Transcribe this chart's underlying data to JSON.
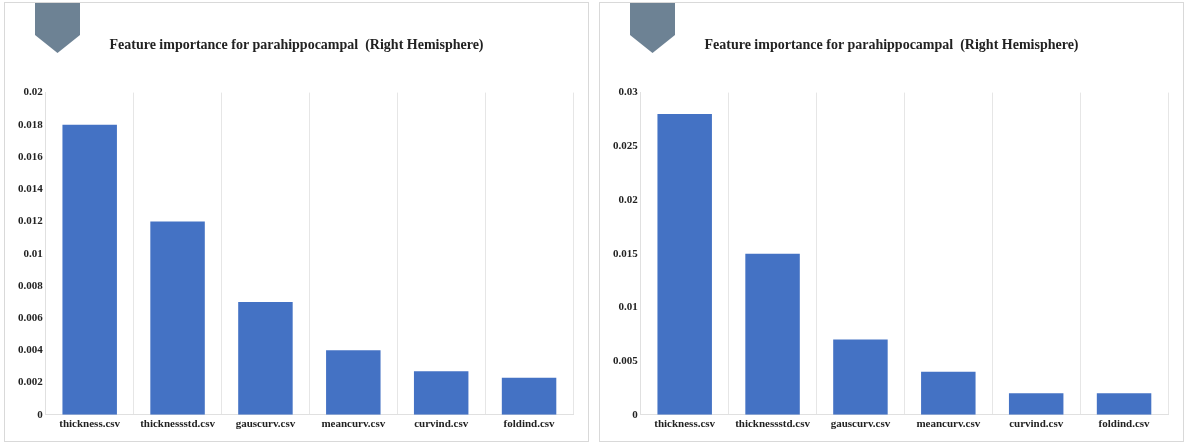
{
  "chart_data": [
    {
      "type": "bar",
      "title": "Feature importance for parahippocampal  (Right Hemisphere)",
      "categories": [
        "thickness.csv",
        "thicknessstd.csv",
        "gauscurv.csv",
        "meancurv.csv",
        "curvind.csv",
        "foldind.csv"
      ],
      "values": [
        0.018,
        0.012,
        0.007,
        0.004,
        0.0027,
        0.0023
      ],
      "color": "#4472c4",
      "ylim": [
        0,
        0.02
      ],
      "yticks": [
        0,
        0.002,
        0.004,
        0.006,
        0.008,
        0.01,
        0.012,
        0.014,
        0.016,
        0.018,
        0.02
      ],
      "grid": "x"
    },
    {
      "type": "bar",
      "title": "Feature importance for parahippocampal  (Right Hemisphere)",
      "categories": [
        "thickness.csv",
        "thicknessstd.csv",
        "gauscurv.csv",
        "meancurv.csv",
        "curvind.csv",
        "foldind.csv"
      ],
      "values": [
        0.028,
        0.015,
        0.007,
        0.004,
        0.002,
        0.002
      ],
      "color": "#4472c4",
      "ylim": [
        0,
        0.03
      ],
      "yticks": [
        0,
        0.005,
        0.01,
        0.015,
        0.02,
        0.025,
        0.03
      ],
      "grid": "x"
    }
  ]
}
